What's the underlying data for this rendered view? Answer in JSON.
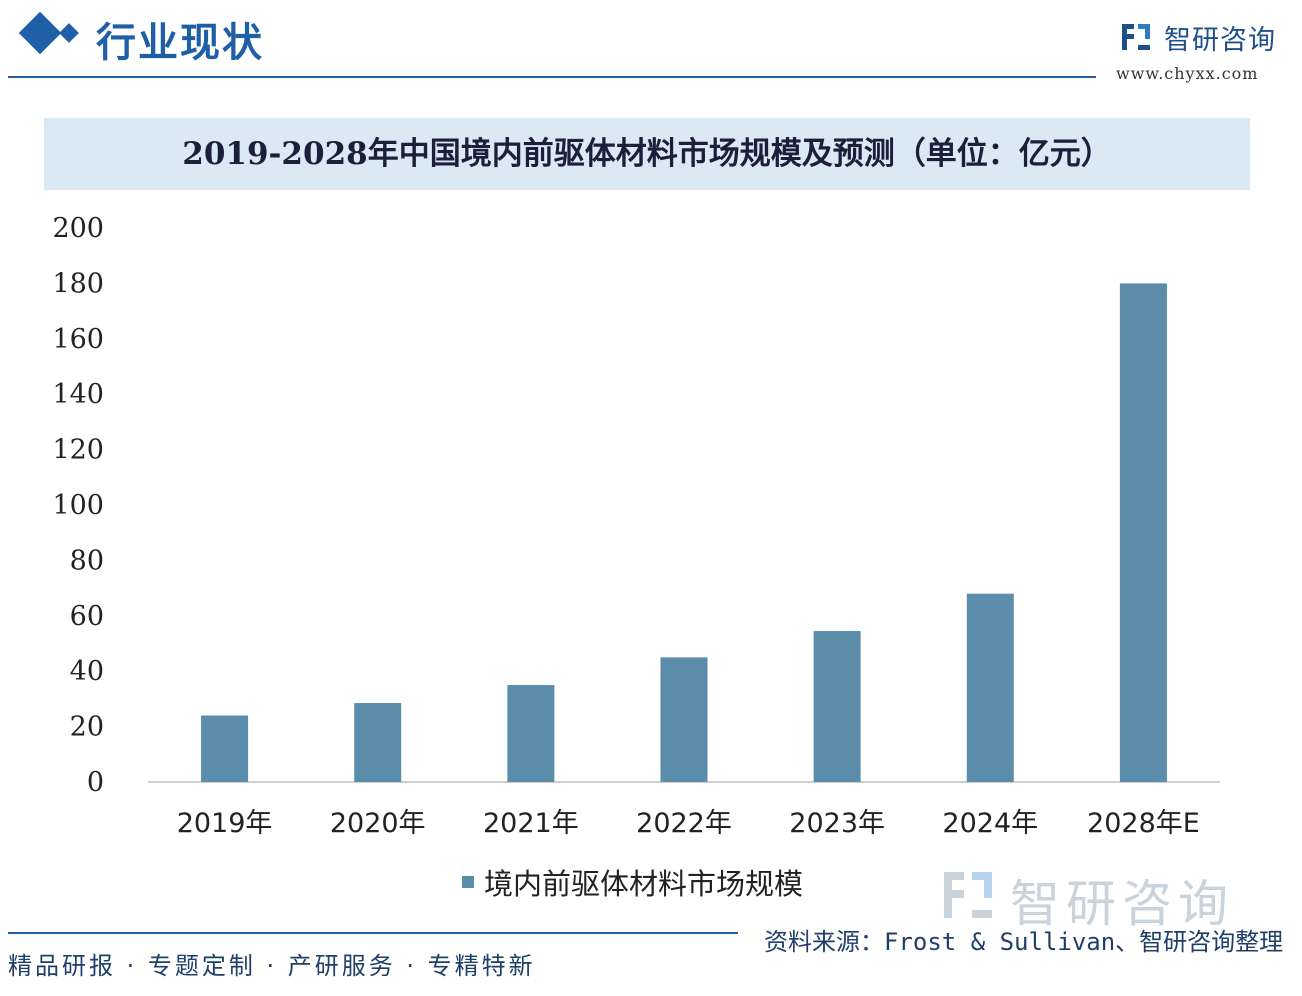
{
  "header": {
    "section_title": "行业现状",
    "brand_name": "智研咨询",
    "brand_url": "www.chyxx.com",
    "logo_icon": "chyxx-logo-icon"
  },
  "colors": {
    "accent": "#1f5fa8",
    "bar": "#5b8dab",
    "title_band": "#dbe9f5"
  },
  "chart_data": {
    "type": "bar",
    "title": "2019-2028年中国境内前驱体材料市场规模及预测（单位：亿元）",
    "categories": [
      "2019年",
      "2020年",
      "2021年",
      "2022年",
      "2023年",
      "2024年",
      "2028年E"
    ],
    "series": [
      {
        "name": "境内前驱体材料市场规模",
        "values": [
          24,
          28.5,
          35,
          45,
          54.5,
          68,
          180
        ]
      }
    ],
    "ylim": [
      0,
      200
    ],
    "yticks": [
      "0",
      "20",
      "40",
      "60",
      "80",
      "100",
      "120",
      "140",
      "160",
      "180",
      "200"
    ],
    "grid": false,
    "legend_position": "bottom"
  },
  "watermark": {
    "name": "智研咨询"
  },
  "footer": {
    "source": "资料来源：Frost & Sullivan、智研咨询整理",
    "tags": "精品研报 · 专题定制 · 产研服务 · 专精特新"
  }
}
